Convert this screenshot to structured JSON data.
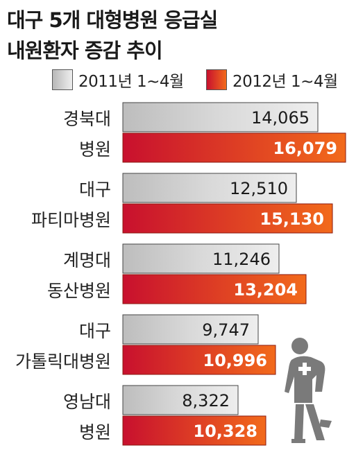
{
  "title": {
    "line1": "대구 5개 대형병원 응급실",
    "line2": "내원환자 증감 추이"
  },
  "legend": [
    {
      "name": "2011년 1~4월",
      "color": "#d0d0d0"
    },
    {
      "name": "2012년 1~4월",
      "color": "#d8261c"
    }
  ],
  "colors": {
    "gray_bar": "#d4d4d4",
    "red_start": "#c8102e",
    "red_end": "#f26a1b"
  },
  "chart_data": {
    "type": "bar",
    "orientation": "horizontal",
    "categories": [
      [
        "경북대",
        "병원"
      ],
      [
        "대구",
        "파티마병원"
      ],
      [
        "계명대",
        "동산병원"
      ],
      [
        "대구",
        "가톨릭대병원"
      ],
      [
        "영남대",
        "병원"
      ]
    ],
    "series": [
      {
        "name": "2011년 1~4월",
        "values": [
          14065,
          12510,
          11246,
          9747,
          8322
        ],
        "labels": [
          "14,065",
          "12,510",
          "11,246",
          "9,747",
          "8,322"
        ]
      },
      {
        "name": "2012년 1~4월",
        "values": [
          16079,
          15130,
          13204,
          10996,
          10328
        ],
        "labels": [
          "16,079",
          "15,130",
          "13,204",
          "10,996",
          "10,328"
        ]
      }
    ],
    "title": "대구 5개 대형병원 응급실 내원환자 증감 추이",
    "xlabel": "",
    "ylabel": "",
    "xlim": [
      0,
      16079
    ],
    "grid": false,
    "legend_position": "top"
  },
  "icons": {
    "figure": "injured-person-icon"
  }
}
